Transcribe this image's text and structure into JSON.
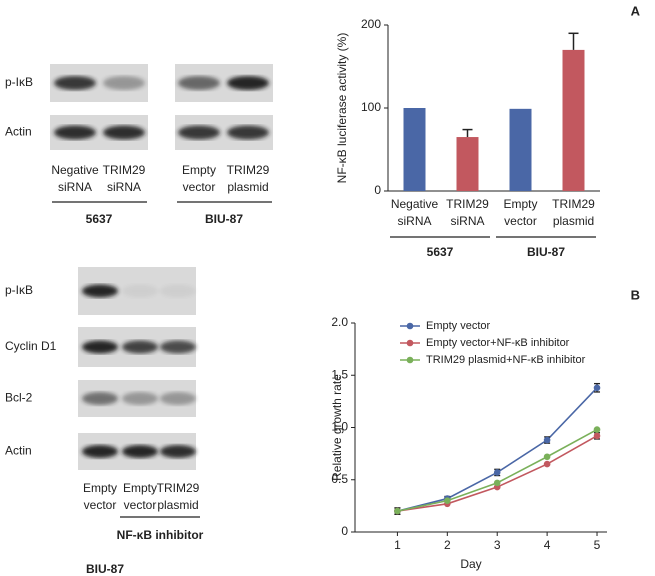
{
  "panel_labels": [
    "A",
    "B"
  ],
  "blots": [
    {
      "rows": [
        "p-IκB",
        "Actin"
      ],
      "lanes": [
        "Negative siRNA",
        "TRIM29 siRNA",
        "Empty vector",
        "TRIM29 plasmid"
      ],
      "groups": [
        "5637",
        "BIU-87"
      ]
    },
    {
      "rows": [
        "p-IκB",
        "Cyclin D1",
        "Bcl-2",
        "Actin"
      ],
      "lanes": [
        "Empty vector",
        "Empty vector",
        "TRIM29 plasmid"
      ],
      "bracket": "NF-κB inhibitor",
      "cell": "BIU-87"
    }
  ],
  "chart_data": [
    {
      "type": "bar",
      "ylabel": "NF-κB luciferase activity (%)",
      "categories": [
        "Negative siRNA",
        "TRIM29 siRNA",
        "Empty vector",
        "TRIM29 plasmid"
      ],
      "values": [
        100,
        65,
        99,
        170
      ],
      "errors": [
        null,
        9,
        null,
        20
      ],
      "colors": [
        "#4a67a6",
        "#c2585f",
        "#4a67a6",
        "#c2585f"
      ],
      "groups": [
        "5637",
        "BIU-87"
      ],
      "ylim": [
        0,
        200
      ],
      "yticks": [
        0,
        100,
        200
      ]
    },
    {
      "type": "line",
      "xlabel": "Day",
      "ylabel": "Relative growth rate",
      "x": [
        1,
        2,
        3,
        4,
        5
      ],
      "xlim": [
        0.15,
        5.2
      ],
      "xticks": [
        1,
        2,
        3,
        4,
        5
      ],
      "ylim": [
        0,
        2
      ],
      "yticks": [
        0,
        0.5,
        {
          "value": 1,
          "label": "1.0"
        },
        1.5,
        {
          "value": 2,
          "label": "2.0"
        }
      ],
      "legend": "upper-left",
      "series": [
        {
          "name": "Empty vector",
          "color": "#4a67a6",
          "values": [
            0.2,
            0.32,
            0.57,
            0.88,
            1.38
          ],
          "errors": [
            0.03,
            0.02,
            0.03,
            0.03,
            0.04
          ]
        },
        {
          "name": "Empty vector+NF-κB inhibitor",
          "color": "#c2585f",
          "values": [
            0.2,
            0.27,
            0.43,
            0.65,
            0.92
          ],
          "errors": [
            0.03,
            null,
            null,
            null,
            0.03
          ]
        },
        {
          "name": "TRIM29 plasmid+NF-κB inhibitor",
          "color": "#7ab05a",
          "values": [
            0.2,
            0.3,
            0.47,
            0.72,
            0.98
          ],
          "errors": [
            null,
            null,
            null,
            null,
            null
          ]
        }
      ]
    }
  ]
}
